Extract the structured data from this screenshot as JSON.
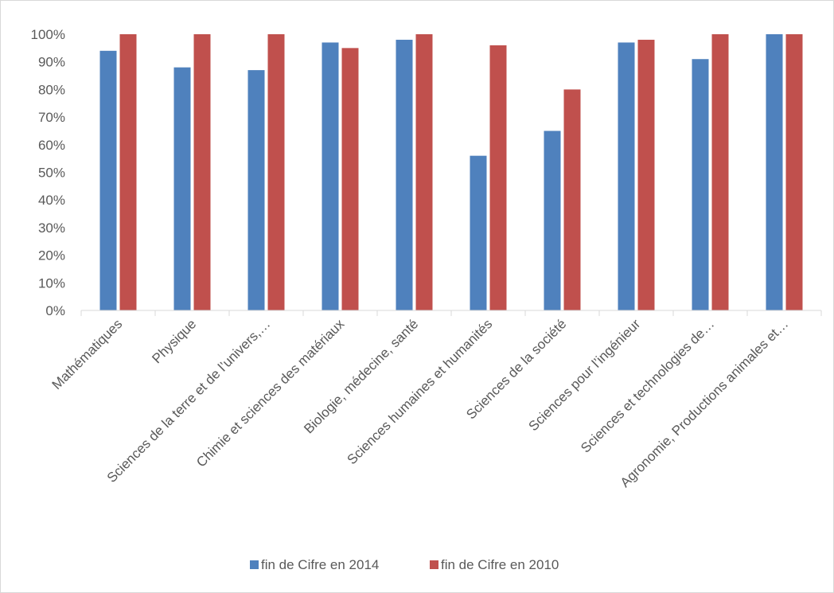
{
  "chart_data": {
    "type": "bar",
    "categories": [
      "Mathématiques",
      "Physique",
      "Sciences de la terre et de l’univers,…",
      "Chimie et sciences des matériaux",
      "Biologie, médecine, santé",
      "Sciences humaines et humanités",
      "Sciences de la société",
      "Sciences pour l’ingénieur",
      "Sciences et technologies de…",
      "Agronomie, Productions animales et…"
    ],
    "series": [
      {
        "name": "fin de Cifre en 2014",
        "color": "#4f81bd",
        "values": [
          94,
          88,
          87,
          97,
          98,
          56,
          65,
          97,
          91,
          100
        ]
      },
      {
        "name": "fin de Cifre en 2010",
        "color": "#c0504d",
        "values": [
          100,
          100,
          100,
          95,
          100,
          96,
          80,
          98,
          100,
          100
        ]
      }
    ],
    "y_ticks": [
      "0%",
      "10%",
      "20%",
      "30%",
      "40%",
      "50%",
      "60%",
      "70%",
      "80%",
      "90%",
      "100%"
    ],
    "ylim": [
      0,
      100
    ],
    "grid": false,
    "legend_position": "bottom",
    "title": "",
    "xlabel": "",
    "ylabel": ""
  }
}
